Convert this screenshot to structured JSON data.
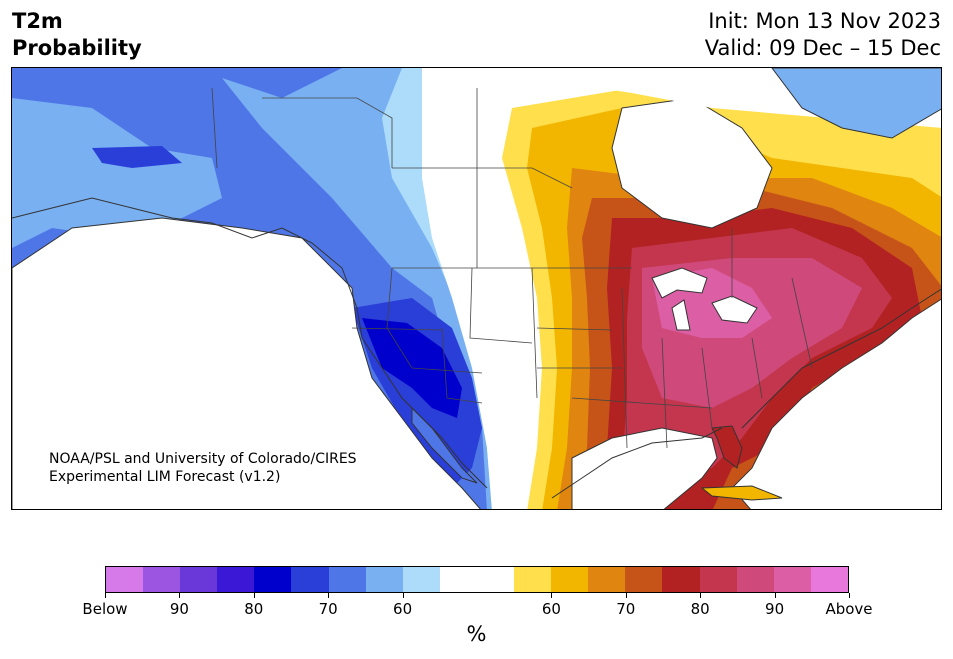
{
  "header": {
    "title_line1": "T2m",
    "title_line2": "Probability",
    "init": "Init: Mon 13 Nov 2023",
    "valid": "Valid: 09 Dec – 15 Dec"
  },
  "map": {
    "credit_line1": "NOAA/PSL and University of Colorado/CIRES",
    "credit_line2": "Experimental LIM Forecast (v1.2)"
  },
  "colorbar": {
    "colors": [
      "#d77ae9",
      "#9c55e0",
      "#6a38d8",
      "#3a18d6",
      "#0000cc",
      "#2a3ed8",
      "#4f76e6",
      "#78b0f2",
      "#acdcfa",
      "#ffffff",
      "#ffffff",
      "#ffe04c",
      "#f2b600",
      "#df8510",
      "#c65418",
      "#b32222",
      "#c3364e",
      "#cf4a7a",
      "#dc5fa6",
      "#e878dc"
    ],
    "tick_labels": [
      "Below",
      "90",
      "80",
      "70",
      "60",
      "60",
      "70",
      "80",
      "90",
      "Above"
    ],
    "unit": "%"
  }
}
